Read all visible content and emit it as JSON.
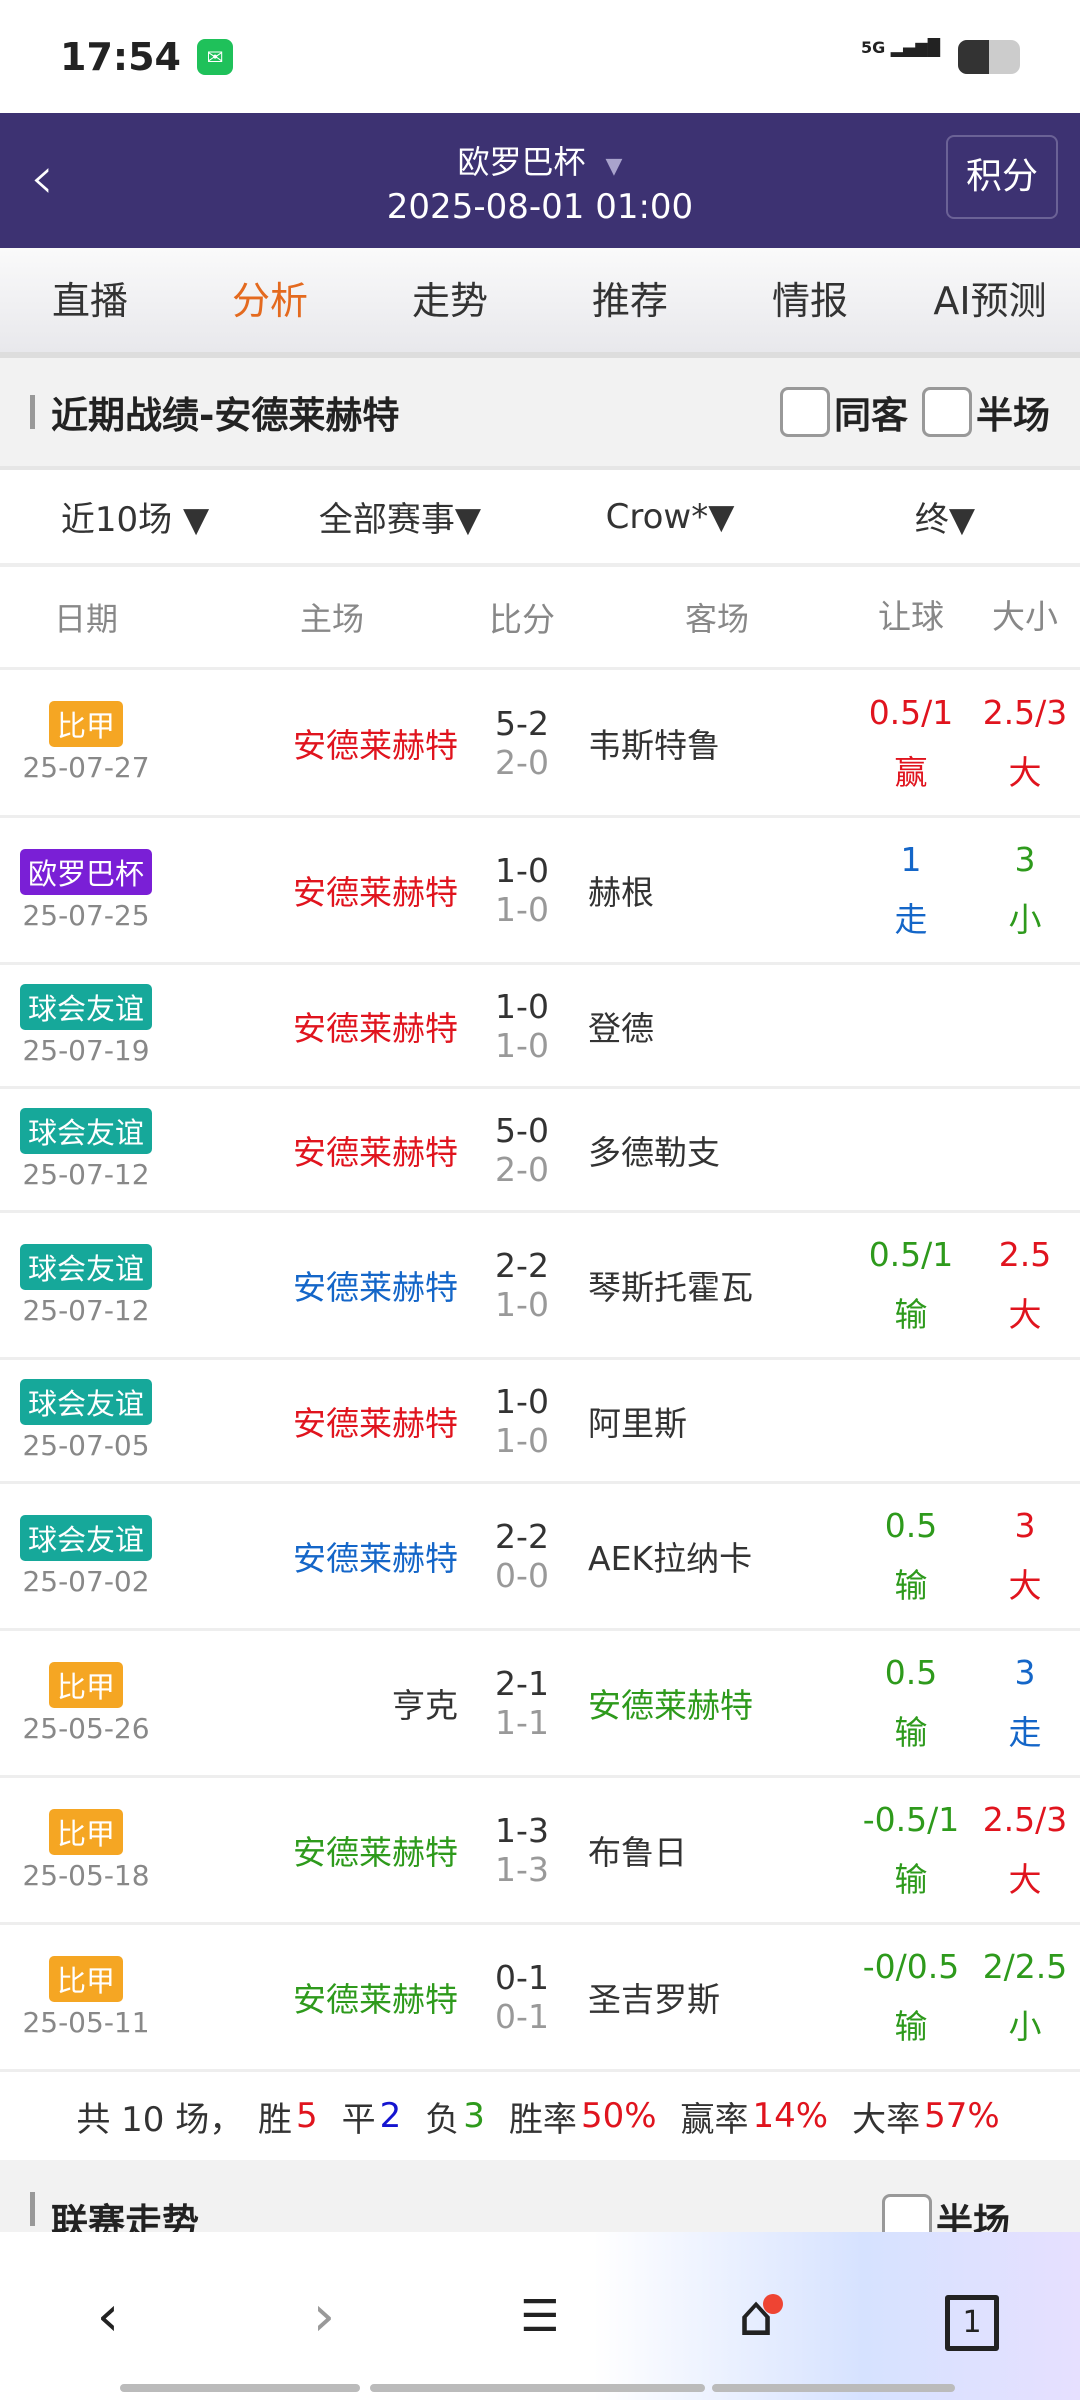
{
  "status": {
    "time": "17:54",
    "network": "5G"
  },
  "header": {
    "title": "欧罗巴杯",
    "datetime": "2025-08-01 01:00",
    "standings_button": "积分"
  },
  "tabs": [
    {
      "label": "直播"
    },
    {
      "label": "分析",
      "active": true
    },
    {
      "label": "走势"
    },
    {
      "label": "推荐"
    },
    {
      "label": "情报"
    },
    {
      "label": "AI预测"
    }
  ],
  "section": {
    "title": "近期战绩-安德莱赫特",
    "cb_same_away": "同客",
    "cb_half": "半场"
  },
  "filters": [
    "近10场",
    "全部赛事",
    "Crow*",
    "终"
  ],
  "columns": [
    "日期",
    "主场",
    "比分",
    "客场",
    "让球",
    "大小"
  ],
  "colors": {
    "red": "#e0141e",
    "blue": "#1466c8",
    "green": "#2e9a1c",
    "orange": "#f5a623",
    "purple": "#7a1fd6",
    "teal": "#16a89a",
    "header": "#3d3272",
    "active_tab": "#e46a1f"
  },
  "rows": [
    {
      "league": "比甲",
      "league_color": "#f5a623",
      "date": "25-07-27",
      "home": "安德莱赫特",
      "home_color": "#e0141e",
      "score": "5-2",
      "half": "2-0",
      "away": "韦斯特鲁",
      "away_color": "#333333",
      "hcp": "0.5/1",
      "hcp_res": "赢",
      "hcp_color": "#e0141e",
      "ou": "2.5/3",
      "ou_res": "大",
      "ou_color": "#e0141e"
    },
    {
      "league": "欧罗巴杯",
      "league_color": "#7a1fd6",
      "date": "25-07-25",
      "home": "安德莱赫特",
      "home_color": "#e0141e",
      "score": "1-0",
      "half": "1-0",
      "away": "赫根",
      "away_color": "#333333",
      "hcp": "1",
      "hcp_res": "走",
      "hcp_color": "#1466c8",
      "ou": "3",
      "ou_res": "小",
      "ou_color": "#2e9a1c"
    },
    {
      "league": "球会友谊",
      "league_color": "#16a89a",
      "date": "25-07-19",
      "home": "安德莱赫特",
      "home_color": "#e0141e",
      "score": "1-0",
      "half": "1-0",
      "away": "登德",
      "away_color": "#333333",
      "hcp": "",
      "hcp_res": "",
      "hcp_color": "#333333",
      "ou": "",
      "ou_res": "",
      "ou_color": "#333333"
    },
    {
      "league": "球会友谊",
      "league_color": "#16a89a",
      "date": "25-07-12",
      "home": "安德莱赫特",
      "home_color": "#e0141e",
      "score": "5-0",
      "half": "2-0",
      "away": "多德勒支",
      "away_color": "#333333",
      "hcp": "",
      "hcp_res": "",
      "hcp_color": "#333333",
      "ou": "",
      "ou_res": "",
      "ou_color": "#333333"
    },
    {
      "league": "球会友谊",
      "league_color": "#16a89a",
      "date": "25-07-12",
      "home": "安德莱赫特",
      "home_color": "#1466c8",
      "score": "2-2",
      "half": "1-0",
      "away": "琴斯托霍瓦",
      "away_color": "#333333",
      "hcp": "0.5/1",
      "hcp_res": "输",
      "hcp_color": "#2e9a1c",
      "ou": "2.5",
      "ou_res": "大",
      "ou_color": "#e0141e"
    },
    {
      "league": "球会友谊",
      "league_color": "#16a89a",
      "date": "25-07-05",
      "home": "安德莱赫特",
      "home_color": "#e0141e",
      "score": "1-0",
      "half": "1-0",
      "away": "阿里斯",
      "away_color": "#333333",
      "hcp": "",
      "hcp_res": "",
      "hcp_color": "#333333",
      "ou": "",
      "ou_res": "",
      "ou_color": "#333333"
    },
    {
      "league": "球会友谊",
      "league_color": "#16a89a",
      "date": "25-07-02",
      "home": "安德莱赫特",
      "home_color": "#1466c8",
      "score": "2-2",
      "half": "0-0",
      "away": "AEK拉纳卡",
      "away_color": "#333333",
      "hcp": "0.5",
      "hcp_res": "输",
      "hcp_color": "#2e9a1c",
      "ou": "3",
      "ou_res": "大",
      "ou_color": "#e0141e"
    },
    {
      "league": "比甲",
      "league_color": "#f5a623",
      "date": "25-05-26",
      "home": "亨克",
      "home_color": "#333333",
      "score": "2-1",
      "half": "1-1",
      "away": "安德莱赫特",
      "away_color": "#2e9a1c",
      "hcp": "0.5",
      "hcp_res": "输",
      "hcp_color": "#2e9a1c",
      "ou": "3",
      "ou_res": "走",
      "ou_color": "#1466c8"
    },
    {
      "league": "比甲",
      "league_color": "#f5a623",
      "date": "25-05-18",
      "home": "安德莱赫特",
      "home_color": "#2e9a1c",
      "score": "1-3",
      "half": "1-3",
      "away": "布鲁日",
      "away_color": "#333333",
      "hcp": "-0.5/1",
      "hcp_res": "输",
      "hcp_color": "#2e9a1c",
      "ou": "2.5/3",
      "ou_res": "大",
      "ou_color": "#e0141e"
    },
    {
      "league": "比甲",
      "league_color": "#f5a623",
      "date": "25-05-11",
      "home": "安德莱赫特",
      "home_color": "#2e9a1c",
      "score": "0-1",
      "half": "0-1",
      "away": "圣吉罗斯",
      "away_color": "#333333",
      "hcp": "-0/0.5",
      "hcp_res": "输",
      "hcp_color": "#2e9a1c",
      "ou": "2/2.5",
      "ou_res": "小",
      "ou_color": "#2e9a1c"
    }
  ],
  "summary": {
    "total_label": "共 10 场，",
    "win_label": "胜",
    "win": "5",
    "draw_label": "平",
    "draw": "2",
    "loss_label": "负",
    "loss": "3",
    "winrate_label": "胜率",
    "winrate": "50%",
    "hcp_rate_label": "赢率",
    "hcp_rate": "14%",
    "over_rate_label": "大率",
    "over_rate": "57%"
  },
  "section2": {
    "title": "联赛走势",
    "cb_half": "半场"
  },
  "nav": {
    "tab_count": "1"
  }
}
